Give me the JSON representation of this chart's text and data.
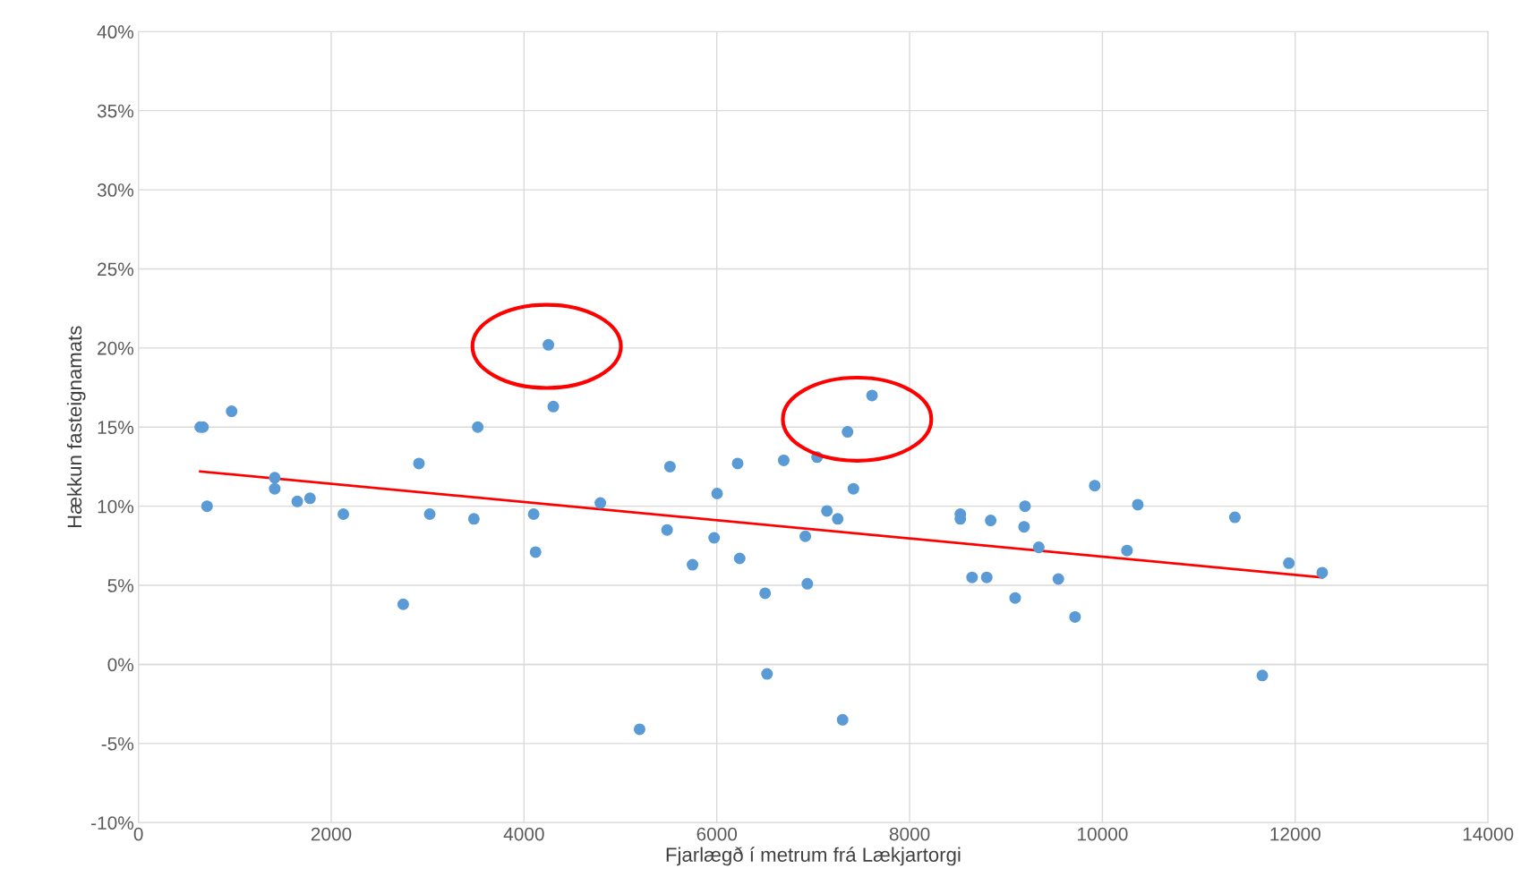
{
  "chart_data": {
    "type": "scatter",
    "xlabel": "Fjarlægð í metrum frá Lækjartorgi",
    "ylabel": "Hækkun fasteignamats",
    "xlim": [
      0,
      14000
    ],
    "xticks": [
      0,
      2000,
      4000,
      6000,
      8000,
      10000,
      12000,
      14000
    ],
    "ylim": [
      -10,
      40
    ],
    "yticks": [
      {
        "value": -10,
        "label": "-10%"
      },
      {
        "value": -5,
        "label": "-5%"
      },
      {
        "value": 0,
        "label": "0%"
      },
      {
        "value": 5,
        "label": "5%"
      },
      {
        "value": 10,
        "label": "10%"
      },
      {
        "value": 15,
        "label": "15%"
      },
      {
        "value": 20,
        "label": "20%"
      },
      {
        "value": 25,
        "label": "25%"
      },
      {
        "value": 30,
        "label": "30%"
      },
      {
        "value": 35,
        "label": "35%"
      },
      {
        "value": 40,
        "label": "40%"
      }
    ],
    "grid": true,
    "marker": "circle",
    "series": [
      {
        "color": "#5b9bd5",
        "x": [
          641,
          670,
          967,
          712,
          1414,
          1414,
          1648,
          1780,
          2126,
          2747,
          2910,
          3022,
          3480,
          3520,
          4100,
          4120,
          4253,
          4304,
          4792,
          5199,
          5484,
          5514,
          5748,
          5972,
          6003,
          6216,
          6237,
          6501,
          6521,
          6694,
          6918,
          6939,
          7040,
          7142,
          7254,
          7305,
          7356,
          7417,
          7610,
          8526,
          8526,
          8648,
          8800,
          8841,
          9095,
          9187,
          9197,
          9340,
          9543,
          9716,
          9920,
          10255,
          10367,
          11374,
          11659,
          11934,
          12280
        ],
        "values": [
          15.0,
          15.0,
          16.0,
          10.0,
          11.8,
          11.1,
          10.3,
          10.5,
          9.5,
          3.8,
          12.7,
          9.5,
          9.2,
          15.0,
          9.5,
          7.1,
          20.2,
          16.3,
          10.2,
          -4.1,
          8.5,
          12.5,
          6.3,
          8.0,
          10.8,
          12.7,
          6.7,
          4.5,
          -0.6,
          12.9,
          8.1,
          5.1,
          13.1,
          9.7,
          9.2,
          -3.5,
          14.7,
          11.1,
          17.0,
          9.5,
          9.2,
          5.5,
          5.5,
          9.1,
          4.2,
          8.7,
          10.0,
          7.4,
          5.4,
          3.0,
          11.3,
          7.2,
          10.1,
          9.3,
          -0.7,
          6.4,
          5.8
        ]
      },
      {
        "type": "line",
        "color": "#ff0000",
        "marker": "none",
        "x": [
          641,
          12280
        ],
        "values": [
          12.2,
          5.5
        ]
      }
    ]
  }
}
